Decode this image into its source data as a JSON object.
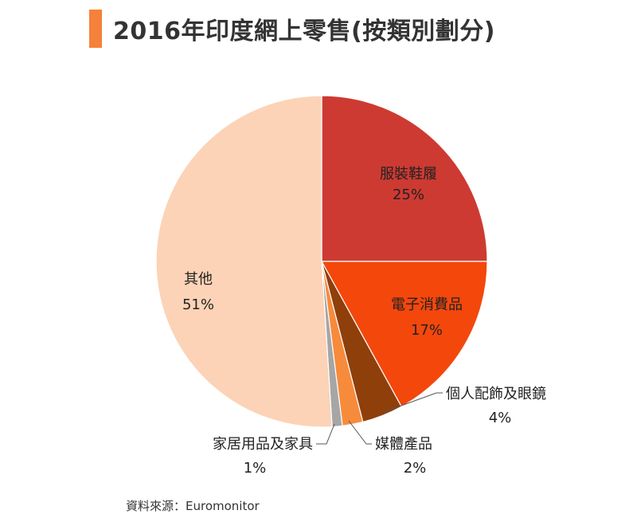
{
  "header": {
    "title": "2016年印度網上零售(按類別劃分)"
  },
  "chart_data": {
    "type": "pie",
    "title": "2016年印度網上零售(按類別劃分)",
    "unit": "%",
    "slices": [
      {
        "name": "服裝鞋履",
        "value": 25,
        "value_label": "25%",
        "color": "#cd3a32"
      },
      {
        "name": "電子消費品",
        "value": 17,
        "value_label": "17%",
        "color": "#f4470c"
      },
      {
        "name": "個人配飾及眼鏡",
        "value": 4,
        "value_label": "4%",
        "color": "#8f3f0a"
      },
      {
        "name": "媒體產品",
        "value": 2,
        "value_label": "2%",
        "color": "#f78b3c"
      },
      {
        "name": "家居用品及家具",
        "value": 1,
        "value_label": "1%",
        "color": "#a6a6a6"
      },
      {
        "name": "其他",
        "value": 51,
        "value_label": "51%",
        "color": "#fcd3b6"
      }
    ]
  },
  "footer": {
    "source": "資料來源：Euromonitor"
  }
}
